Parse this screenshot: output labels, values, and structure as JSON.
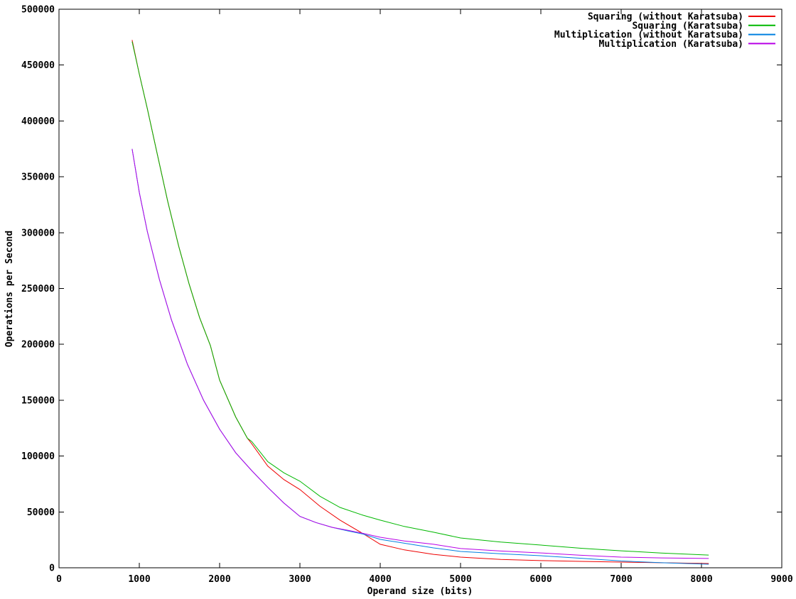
{
  "chart_data": {
    "type": "line",
    "title": "",
    "xlabel": "Operand size (bits)",
    "ylabel": "Operations per Second",
    "xlim": [
      0,
      9000
    ],
    "ylim": [
      0,
      500000
    ],
    "xticks": [
      0,
      1000,
      2000,
      3000,
      4000,
      5000,
      6000,
      7000,
      8000,
      9000
    ],
    "yticks": [
      0,
      50000,
      100000,
      150000,
      200000,
      250000,
      300000,
      350000,
      400000,
      450000,
      500000
    ],
    "grid": false,
    "legend_position": "top-right",
    "background_color": "#ffffff",
    "axis_color": "#000000",
    "series": [
      {
        "name": "Squaring (without Karatsuba)",
        "color": "#ee0000",
        "points": [
          [
            911,
            472500
          ],
          [
            1000,
            442000
          ],
          [
            1100,
            411000
          ],
          [
            1225,
            370000
          ],
          [
            1354,
            328000
          ],
          [
            1490,
            288000
          ],
          [
            1620,
            254000
          ],
          [
            1750,
            224000
          ],
          [
            1885,
            199000
          ],
          [
            2000,
            168000
          ],
          [
            2200,
            135000
          ],
          [
            2345,
            116000
          ],
          [
            2400,
            111000
          ],
          [
            2600,
            91000
          ],
          [
            2800,
            79000
          ],
          [
            3000,
            70000
          ],
          [
            3250,
            55000
          ],
          [
            3500,
            42600
          ],
          [
            3787,
            30500
          ],
          [
            4000,
            21000
          ],
          [
            4300,
            16000
          ],
          [
            4664,
            12000
          ],
          [
            5000,
            9500
          ],
          [
            5500,
            7500
          ],
          [
            6000,
            6400
          ],
          [
            6500,
            5700
          ],
          [
            7000,
            5100
          ],
          [
            7500,
            4500
          ],
          [
            8090,
            3800
          ]
        ]
      },
      {
        "name": "Squaring (Karatsuba)",
        "color": "#00b800",
        "points": [
          [
            911,
            471000
          ],
          [
            1000,
            442000
          ],
          [
            1100,
            411000
          ],
          [
            1225,
            370000
          ],
          [
            1354,
            328000
          ],
          [
            1490,
            288000
          ],
          [
            1620,
            254000
          ],
          [
            1750,
            224000
          ],
          [
            1885,
            199000
          ],
          [
            2000,
            168000
          ],
          [
            2200,
            135000
          ],
          [
            2345,
            116000
          ],
          [
            2400,
            113000
          ],
          [
            2600,
            95000
          ],
          [
            2800,
            85000
          ],
          [
            3000,
            77500
          ],
          [
            3250,
            64000
          ],
          [
            3500,
            54000
          ],
          [
            3787,
            47000
          ],
          [
            4000,
            42600
          ],
          [
            4300,
            37000
          ],
          [
            4664,
            31800
          ],
          [
            5000,
            26700
          ],
          [
            5500,
            23000
          ],
          [
            6000,
            20300
          ],
          [
            6500,
            17500
          ],
          [
            7000,
            15200
          ],
          [
            7500,
            13200
          ],
          [
            8090,
            11400
          ]
        ]
      },
      {
        "name": "Multiplication (without Karatsuba)",
        "color": "#0080e0",
        "points": [
          [
            911,
            375000
          ],
          [
            1000,
            336000
          ],
          [
            1100,
            301000
          ],
          [
            1250,
            258000
          ],
          [
            1400,
            222000
          ],
          [
            1600,
            182000
          ],
          [
            1800,
            150000
          ],
          [
            2000,
            124000
          ],
          [
            2200,
            103000
          ],
          [
            2400,
            87000
          ],
          [
            2600,
            72000
          ],
          [
            2800,
            58000
          ],
          [
            3000,
            46000
          ],
          [
            3200,
            40500
          ],
          [
            3400,
            36200
          ],
          [
            3600,
            33000
          ],
          [
            3787,
            30200
          ],
          [
            4000,
            25400
          ],
          [
            4300,
            22000
          ],
          [
            4664,
            17800
          ],
          [
            5000,
            14600
          ],
          [
            5500,
            12500
          ],
          [
            6000,
            10800
          ],
          [
            6500,
            8500
          ],
          [
            7000,
            6100
          ],
          [
            7500,
            4500
          ],
          [
            8090,
            3200
          ]
        ]
      },
      {
        "name": "Multiplication (Karatsuba)",
        "color": "#b800e6",
        "points": [
          [
            911,
            375000
          ],
          [
            1000,
            336000
          ],
          [
            1100,
            301000
          ],
          [
            1250,
            258000
          ],
          [
            1400,
            222000
          ],
          [
            1600,
            182000
          ],
          [
            1800,
            150000
          ],
          [
            2000,
            124000
          ],
          [
            2200,
            103000
          ],
          [
            2400,
            87000
          ],
          [
            2600,
            72000
          ],
          [
            2800,
            58000
          ],
          [
            3000,
            46000
          ],
          [
            3200,
            40500
          ],
          [
            3400,
            36200
          ],
          [
            3600,
            33500
          ],
          [
            3787,
            30800
          ],
          [
            4000,
            27300
          ],
          [
            4300,
            24000
          ],
          [
            4664,
            21000
          ],
          [
            5000,
            17200
          ],
          [
            5500,
            15000
          ],
          [
            6000,
            13300
          ],
          [
            6500,
            11200
          ],
          [
            7000,
            9500
          ],
          [
            7500,
            8800
          ],
          [
            8090,
            8300
          ]
        ]
      }
    ]
  }
}
